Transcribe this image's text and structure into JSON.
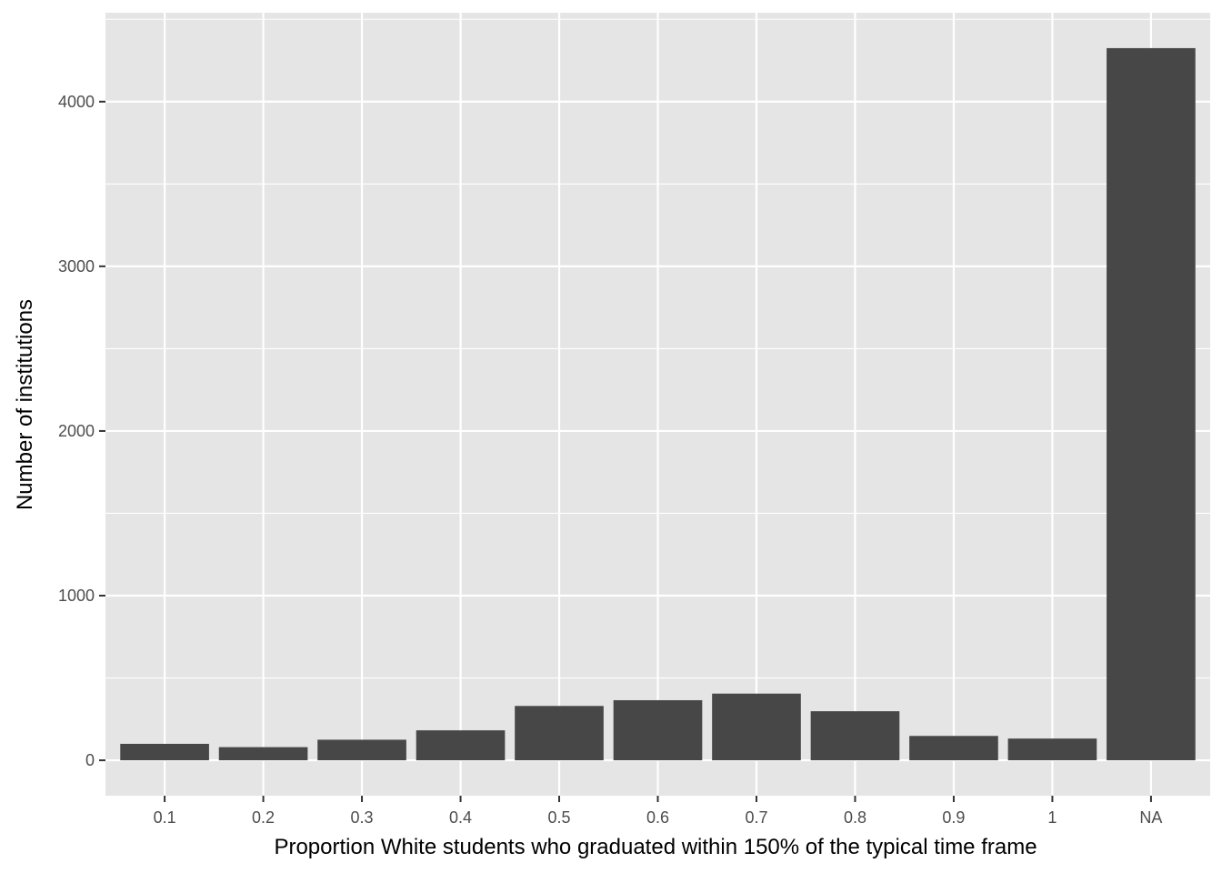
{
  "chart_data": {
    "type": "bar",
    "title": "",
    "xlabel": "Proportion White students who graduated within 150% of the typical time frame",
    "ylabel": "Number of institutions",
    "categories": [
      "0.1",
      "0.2",
      "0.3",
      "0.4",
      "0.5",
      "0.6",
      "0.7",
      "0.8",
      "0.9",
      "1",
      "NA"
    ],
    "values": [
      100,
      80,
      125,
      182,
      330,
      365,
      405,
      298,
      148,
      132,
      4325
    ],
    "ylim": [
      -215,
      4540
    ],
    "yticks": [
      0,
      1000,
      2000,
      3000,
      4000
    ],
    "ytick_labels": [
      "0",
      "1000",
      "2000",
      "3000",
      "4000"
    ],
    "grid": true,
    "legend": "none",
    "colors": {
      "panel_background": "#e5e5e5",
      "grid": "#ffffff",
      "bar_fill": "#474747",
      "tick_text": "#4d4d4d",
      "title_text": "#000000"
    }
  }
}
